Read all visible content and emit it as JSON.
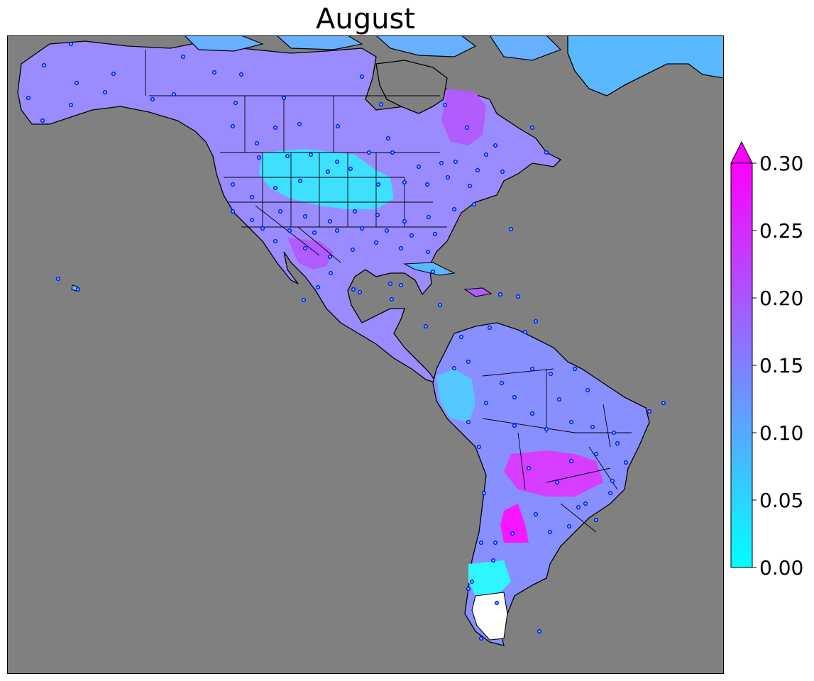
{
  "title": "August",
  "colorbar": {
    "ticks": [
      "0.00",
      "0.05",
      "0.10",
      "0.15",
      "0.20",
      "0.25",
      "0.30"
    ],
    "range": [
      0.0,
      0.3
    ],
    "extend": "max",
    "colormap": "cool",
    "colors": {
      "low": "#00ffff",
      "high": "#ff00ff"
    }
  },
  "map": {
    "region": "Americas",
    "ocean_color": "#808080",
    "no_data_color": "#ffffff",
    "border_color": "#000000",
    "station_marker_color": "#0000ff"
  }
}
